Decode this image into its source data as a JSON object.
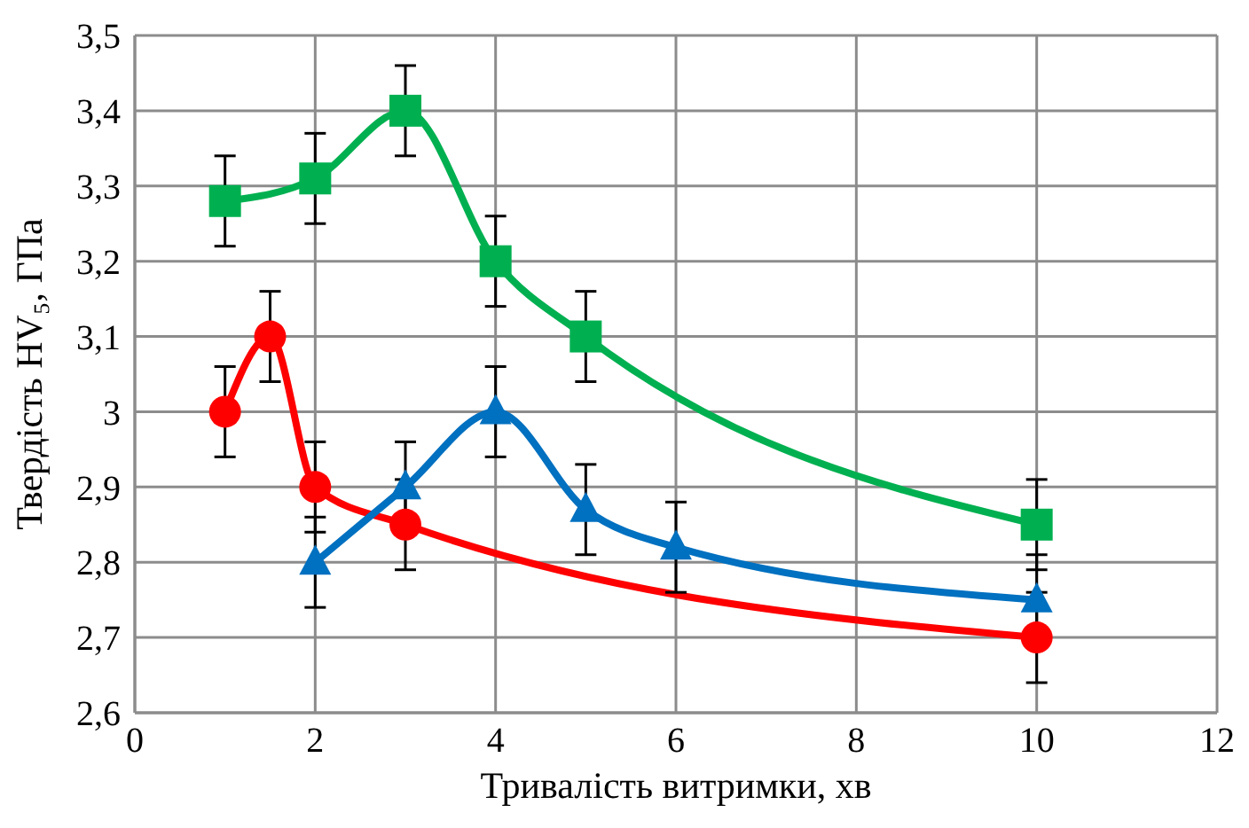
{
  "chart_data": {
    "type": "line",
    "xlabel": "Тривалість витримки, хв",
    "ylabel": "Твердість HV₅, ГПа",
    "xlim": [
      0,
      12
    ],
    "xticks": [
      0,
      2,
      4,
      6,
      8,
      10,
      12
    ],
    "ylim": [
      2.6,
      3.5
    ],
    "yticks": [
      {
        "value": 2.6,
        "label": "2,6"
      },
      {
        "value": 2.7,
        "label": "2,7"
      },
      {
        "value": 2.8,
        "label": "2,8"
      },
      {
        "value": 2.9,
        "label": "2,9"
      },
      3,
      {
        "value": 3.1,
        "label": "3,1"
      },
      {
        "value": 3.2,
        "label": "3,2"
      },
      {
        "value": 3.3,
        "label": "3,3"
      },
      {
        "value": 3.4,
        "label": "3,4"
      },
      {
        "value": 3.5,
        "label": "3,5"
      }
    ],
    "grid": true,
    "series": [
      {
        "color": "#00b050",
        "marker": "square",
        "x": [
          1,
          2,
          3,
          4,
          5,
          10
        ],
        "values": [
          3.28,
          3.31,
          3.4,
          3.2,
          3.1,
          2.85
        ],
        "errors": [
          0.06,
          0.06,
          0.06,
          0.06,
          0.06,
          0.06
        ]
      },
      {
        "color": "#ff0000",
        "marker": "circle",
        "x": [
          1,
          1.5,
          2,
          3,
          10
        ],
        "values": [
          3.0,
          3.1,
          2.9,
          2.85,
          2.7
        ],
        "errors": [
          0.06,
          0.06,
          0.06,
          0.06,
          0.06
        ]
      },
      {
        "color": "#0070c0",
        "marker": "triangle",
        "x": [
          2,
          3,
          4,
          5,
          6,
          10
        ],
        "values": [
          2.8,
          2.9,
          3.0,
          2.87,
          2.82,
          2.75
        ],
        "errors": [
          0.06,
          0.06,
          0.06,
          0.06,
          0.06,
          0.06
        ]
      }
    ]
  }
}
